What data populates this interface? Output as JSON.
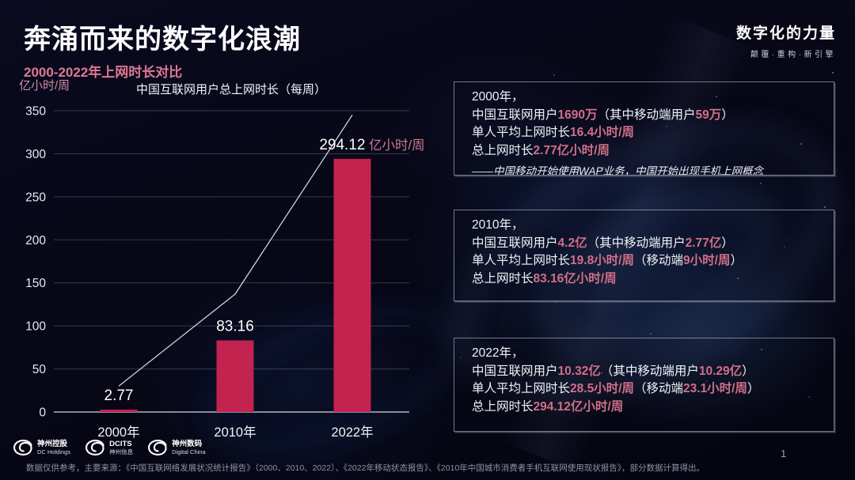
{
  "slide": {
    "title": "奔涌而来的数字化浪潮",
    "subtitle": "2000-2022年上网时长对比",
    "brand": {
      "name": "数字化的力量",
      "tagline": "颠覆·重构·新引擎"
    },
    "page_number": "1",
    "footnote": "数据仅供参考，主要来源：《中国互联网络发展状况统计报告》（2000、2010、2022）、《2022年移动状态报告》、《2010年中国城市消费者手机互联网使用现状报告》，部分数据计算得出。"
  },
  "chart_data": {
    "type": "bar",
    "title": "中国互联网用户总上网时长（每周）",
    "ylabel": "亿小时/周",
    "categories": [
      "2000年",
      "2010年",
      "2022年"
    ],
    "values": [
      2.77,
      83.16,
      294.12
    ],
    "value_labels": [
      "2.77",
      "83.16",
      "294.12"
    ],
    "last_value_unit": "亿小时/周",
    "ylim": [
      0,
      350
    ],
    "yticks": [
      0,
      50,
      100,
      150,
      200,
      250,
      300,
      350
    ],
    "grid": true,
    "legend": "none",
    "bar_color": "#C2234F",
    "trend_line_points": [
      [
        0,
        30
      ],
      [
        1,
        137
      ],
      [
        2,
        345
      ]
    ]
  },
  "info_cards": [
    {
      "year_line": "2000年，",
      "lines": [
        [
          {
            "t": "中国互联网用户"
          },
          {
            "t": "1690万",
            "h": true
          },
          {
            "t": "（其中移动端用户"
          },
          {
            "t": "59万",
            "h": true
          },
          {
            "t": "）"
          }
        ],
        [
          {
            "t": "单人平均上网时长"
          },
          {
            "t": "16.4小时/周",
            "h": true
          }
        ],
        [
          {
            "t": "总上网时长"
          },
          {
            "t": "2.77亿小时/周",
            "h": true
          }
        ]
      ],
      "note": "——中国移动开始使用WAP业务，中国开始出现手机上网概念"
    },
    {
      "year_line": "2010年，",
      "lines": [
        [
          {
            "t": "中国互联网用户"
          },
          {
            "t": "4.2亿",
            "h": true
          },
          {
            "t": "（其中移动端用户"
          },
          {
            "t": "2.77亿",
            "h": true
          },
          {
            "t": "）"
          }
        ],
        [
          {
            "t": "单人平均上网时长"
          },
          {
            "t": "19.8小时/周",
            "h": true
          },
          {
            "t": "（移动端"
          },
          {
            "t": "9小时/周",
            "h": true
          },
          {
            "t": "）"
          }
        ],
        [
          {
            "t": "总上网时长"
          },
          {
            "t": "83.16亿小时/周",
            "h": true
          }
        ]
      ],
      "note": ""
    },
    {
      "year_line": "2022年，",
      "lines": [
        [
          {
            "t": "中国互联网用户"
          },
          {
            "t": "10.32亿",
            "h": true
          },
          {
            "t": "（其中移动端用户"
          },
          {
            "t": "10.29亿",
            "h": true
          },
          {
            "t": "）"
          }
        ],
        [
          {
            "t": "单人平均上网时长"
          },
          {
            "t": "28.5小时/周",
            "h": true
          },
          {
            "t": "（移动端"
          },
          {
            "t": "23.1小时/周",
            "h": true
          },
          {
            "t": "）"
          }
        ],
        [
          {
            "t": "总上网时长"
          },
          {
            "t": "294.12亿小时/周",
            "h": true
          }
        ]
      ],
      "note": ""
    }
  ],
  "footer_logos": [
    {
      "name": "神州控股",
      "sub": "DC Holdings"
    },
    {
      "name": "DCITS",
      "sub": "神州信息"
    },
    {
      "name": "神州数码",
      "sub": "Digital China"
    }
  ],
  "colors": {
    "background": "#070716",
    "bar": "#C2234F",
    "pink_highlight": "#D16F88",
    "subtitle_pink": "#DE7892",
    "axis_unit_pink": "#CE8DA5",
    "footnote_gray": "#9093A8"
  }
}
